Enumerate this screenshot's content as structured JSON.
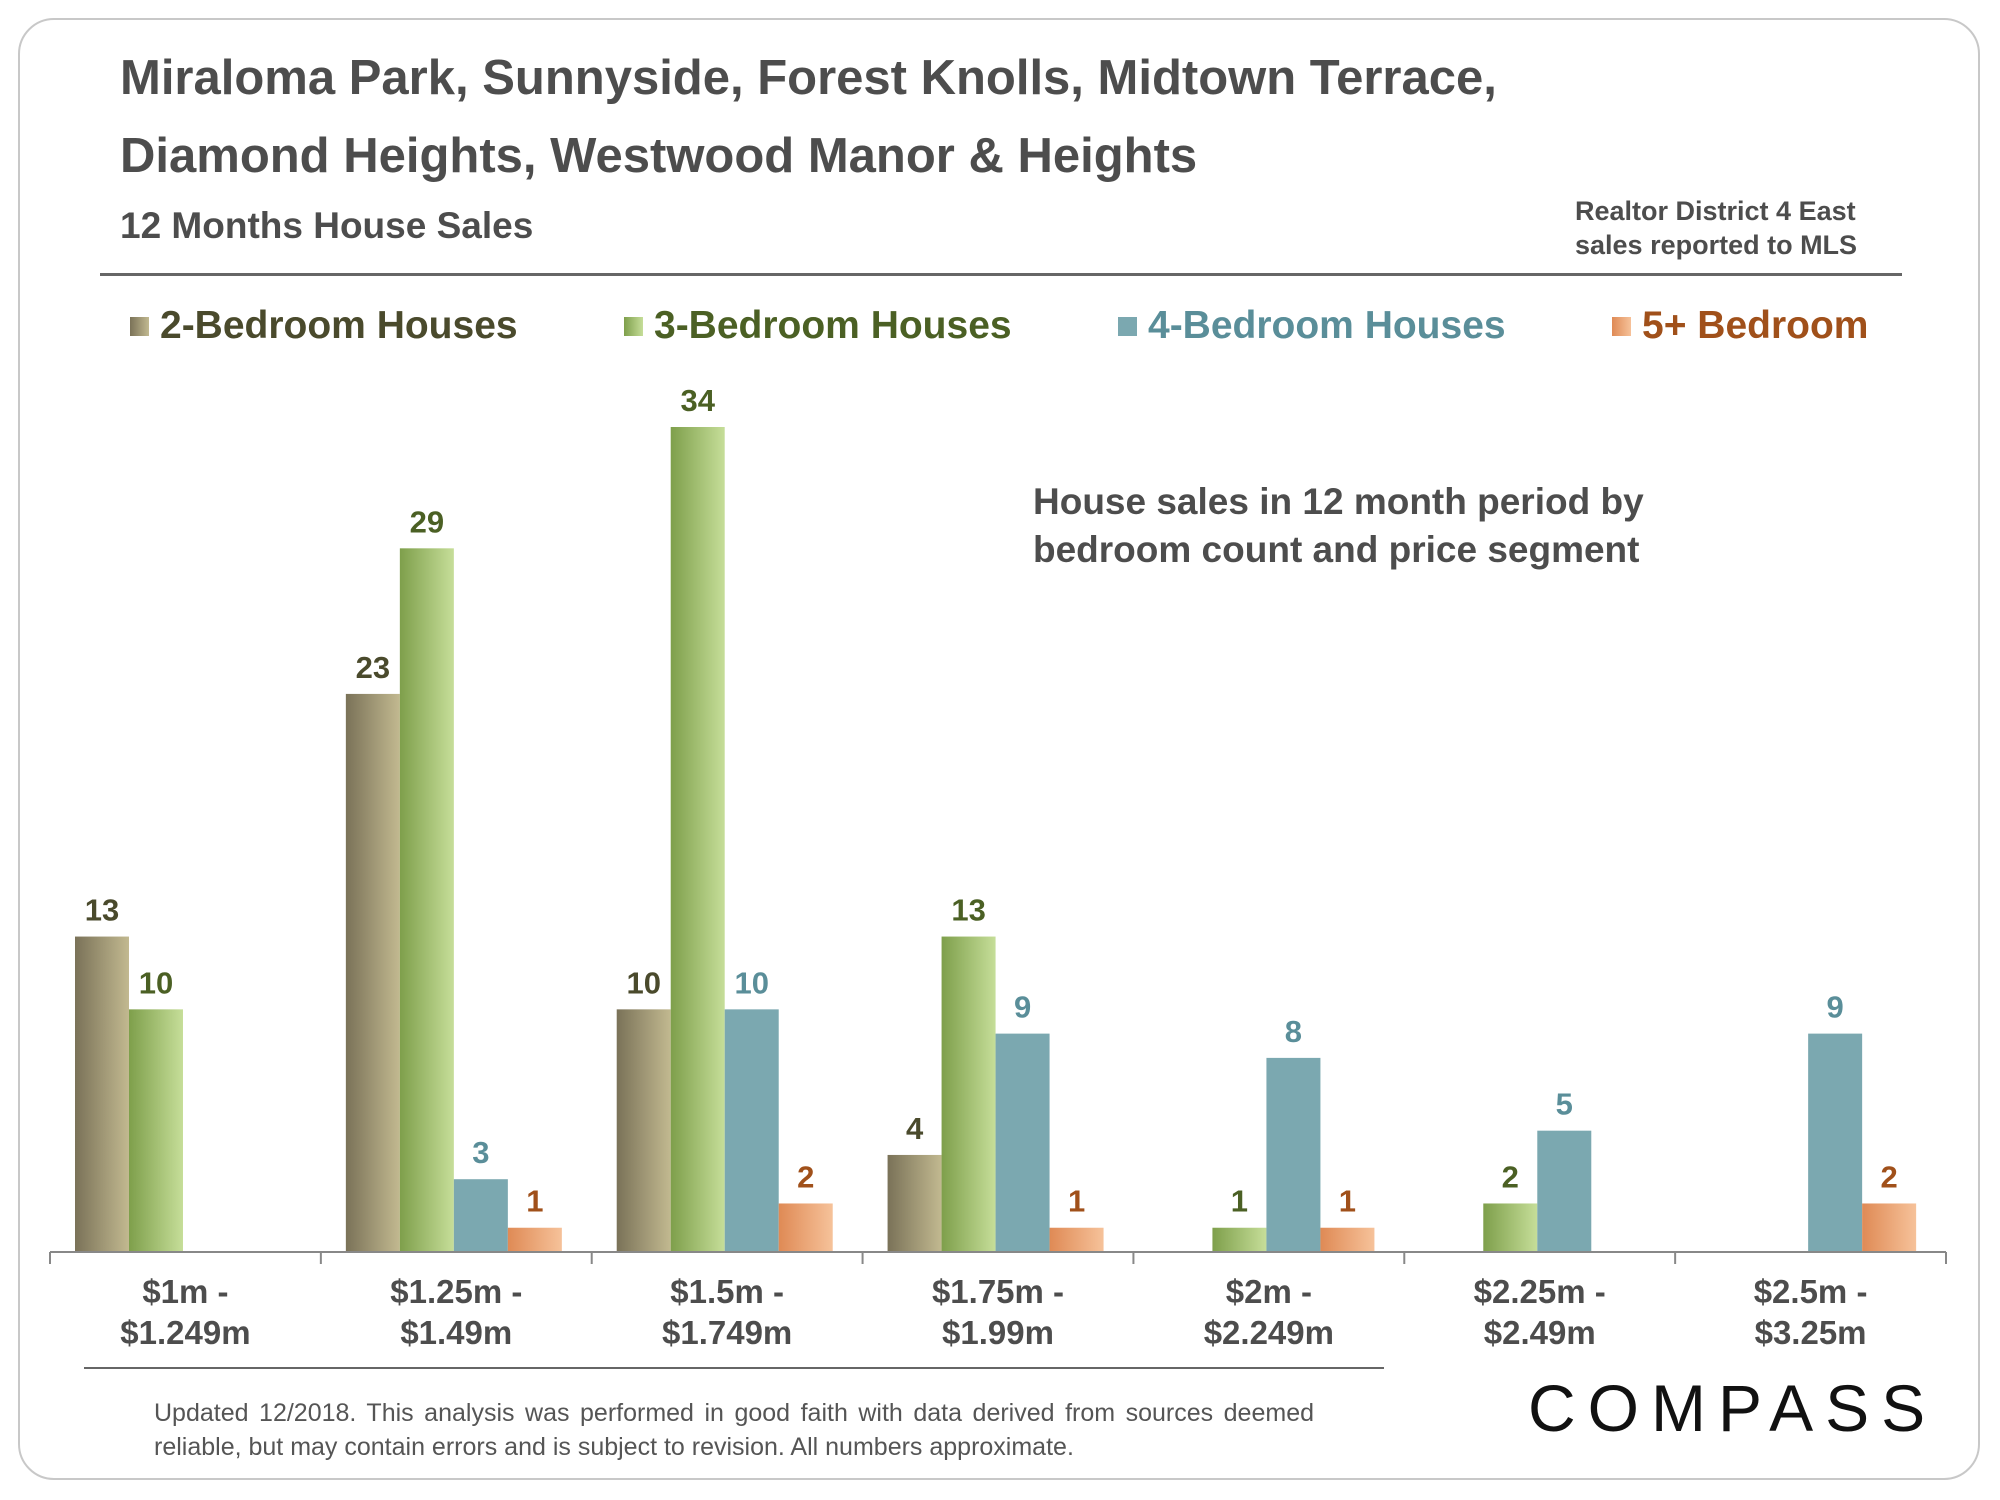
{
  "header": {
    "title_line1": "Miraloma Park, Sunnyside, Forest Knolls, Midtown Terrace,",
    "title_line2": "Diamond Heights, Westwood Manor & Heights",
    "subtitle": "12 Months House Sales",
    "source_line1": "Realtor District 4 East",
    "source_line2": "sales reported to MLS"
  },
  "annotation": {
    "line1": "House sales in 12 month period by",
    "line2": "bedroom count and price segment"
  },
  "colors": {
    "bed2": "#8c8467",
    "bed3": "#8fae5a",
    "bed4": "#7ba8b0",
    "bed5": "#e99a68",
    "bed2_label": "#4a4a2c",
    "bed3_label": "#4b6024",
    "bed4_label": "#5a8e99",
    "bed5_label": "#a0501a"
  },
  "chart_data": {
    "type": "bar",
    "title": "12 Months House Sales",
    "categories": [
      [
        "$1m -",
        "$1.249m"
      ],
      [
        "$1.25m -",
        "$1.49m"
      ],
      [
        "$1.5m -",
        "$1.749m"
      ],
      [
        "$1.75m -",
        "$1.99m"
      ],
      [
        "$2m -",
        "$2.249m"
      ],
      [
        "$2.25m -",
        "$2.49m"
      ],
      [
        "$2.5m -",
        "$3.25m"
      ]
    ],
    "series": [
      {
        "name": "2-Bedroom Houses",
        "key": "bed2",
        "values": [
          13,
          23,
          10,
          4,
          null,
          null,
          null
        ]
      },
      {
        "name": "3-Bedroom Houses",
        "key": "bed3",
        "values": [
          10,
          29,
          34,
          13,
          1,
          2,
          null
        ]
      },
      {
        "name": "4-Bedroom Houses",
        "key": "bed4",
        "values": [
          null,
          3,
          10,
          9,
          8,
          5,
          9
        ]
      },
      {
        "name": "5+ Bedroom",
        "key": "bed5",
        "values": [
          null,
          1,
          2,
          1,
          1,
          null,
          2
        ]
      }
    ],
    "ylim": [
      0,
      34
    ],
    "xlabel": "",
    "ylabel": "",
    "grid": false,
    "legend_position": "top"
  },
  "footer": {
    "disclaimer": "Updated 12/2018. This analysis was performed in good faith with data derived from sources deemed reliable, but may contain errors and is subject to revision. All numbers approximate.",
    "brand": "COMPASS"
  }
}
